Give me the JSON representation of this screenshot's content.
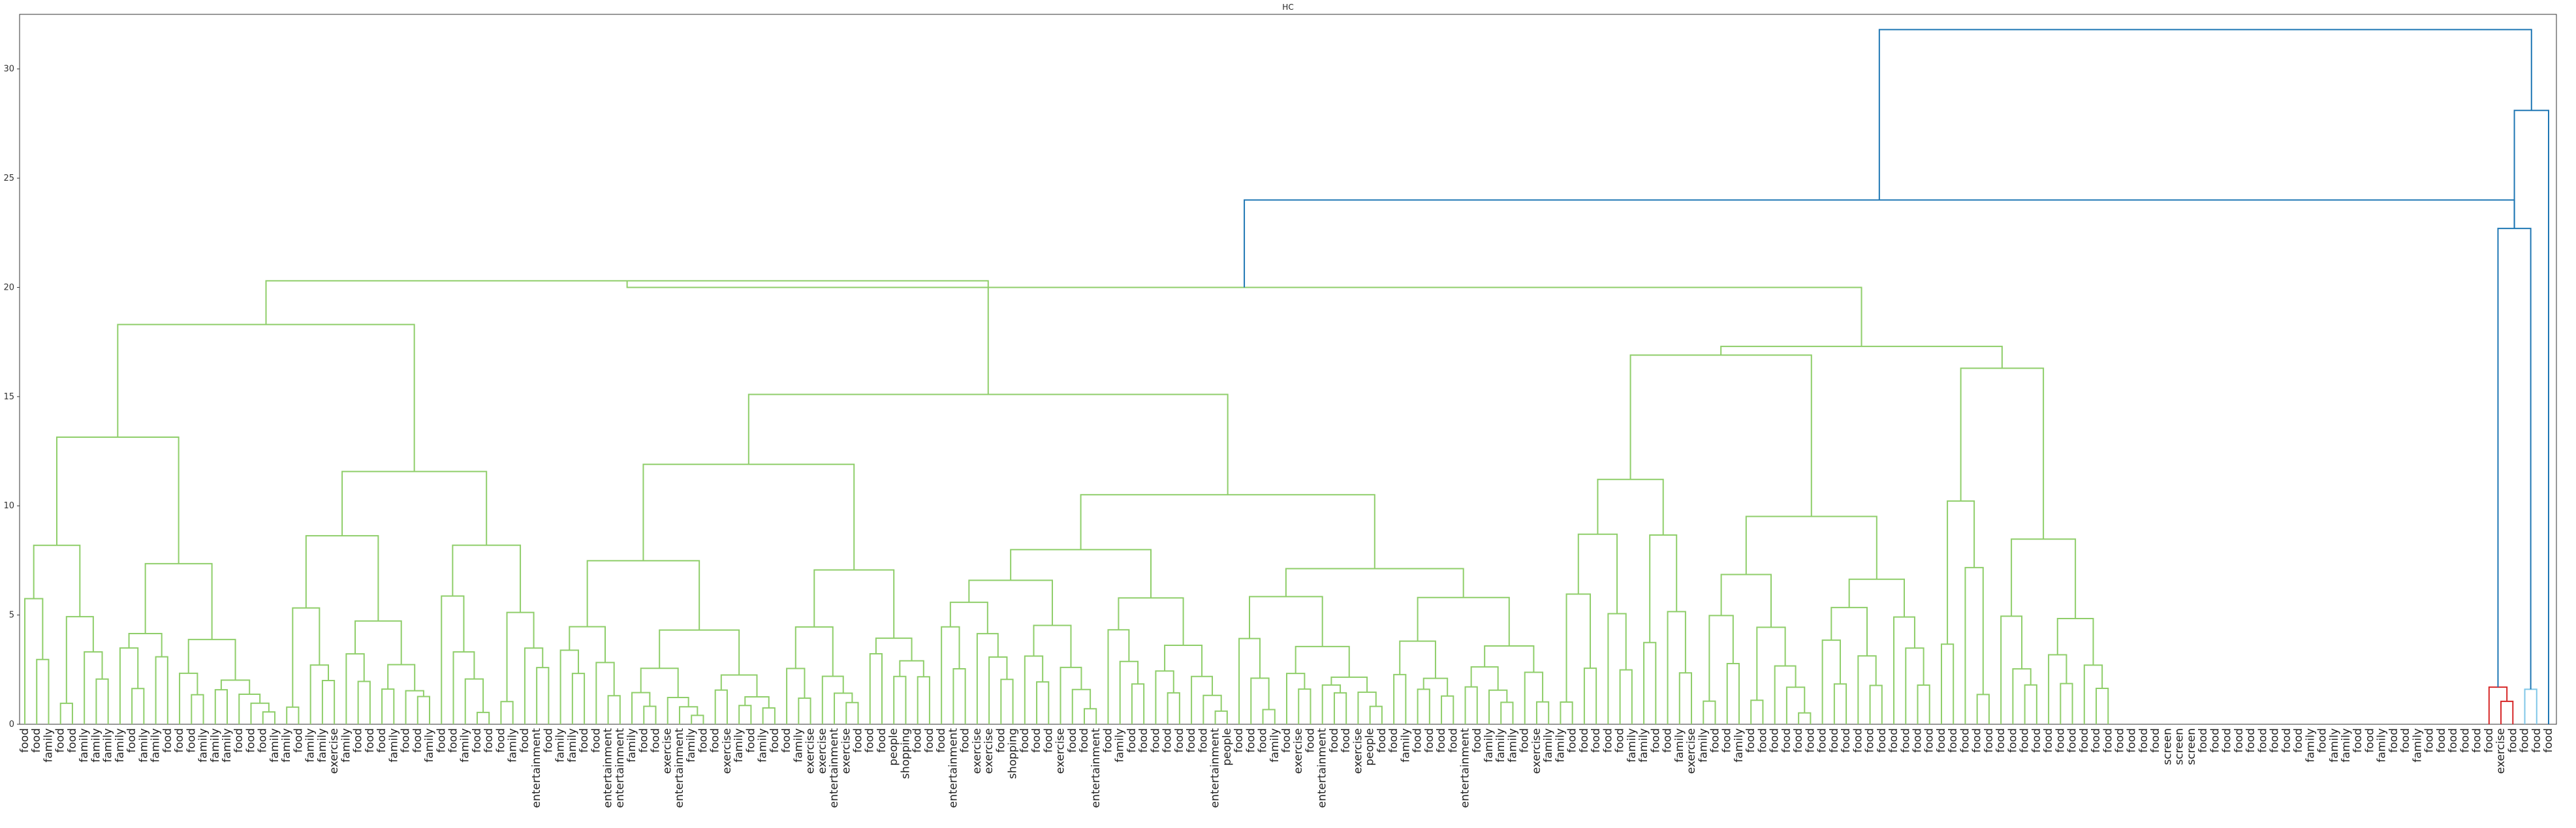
{
  "chart_data": {
    "type": "dendrogram",
    "title": "HC",
    "xlabel": "",
    "ylabel": "",
    "ylim": [
      0,
      32.5
    ],
    "yticks": [
      0,
      5,
      10,
      15,
      20,
      25,
      30
    ],
    "grid": false,
    "legend": "none",
    "colors": {
      "cluster_green": "#8fce6a",
      "cluster_red": "#d62728",
      "cluster_lightblue": "#7fc7e8",
      "above_threshold": "#1f77b4"
    },
    "leaf_label_sequence": [
      "food",
      "food",
      "family",
      "food",
      "food",
      "family",
      "family",
      "family",
      "family",
      "food",
      "family",
      "family",
      "food",
      "food",
      "food",
      "family",
      "family",
      "family",
      "food",
      "food",
      "food",
      "family",
      "family",
      "food",
      "family",
      "family",
      "exercise",
      "family",
      "food",
      "food",
      "food",
      "family",
      "food",
      "food",
      "family",
      "food",
      "food",
      "family",
      "food",
      "food",
      "food",
      "family",
      "food",
      "entertainment",
      "food",
      "family",
      "family",
      "food",
      "food",
      "entertainment",
      "entertainment",
      "family",
      "food",
      "food",
      "exercise",
      "entertainment",
      "family",
      "food",
      "food",
      "exercise",
      "family",
      "food",
      "family",
      "food",
      "food",
      "family",
      "exercise",
      "exercise",
      "entertainment",
      "exercise",
      "food",
      "food",
      "food",
      "people",
      "shopping",
      "food",
      "food",
      "food",
      "entertainment",
      "food",
      "exercise",
      "exercise",
      "food",
      "shopping",
      "food",
      "food",
      "food",
      "exercise",
      "food",
      "food",
      "entertainment",
      "food",
      "family",
      "food",
      "food",
      "food",
      "food",
      "food",
      "food",
      "food",
      "entertainment",
      "people",
      "food",
      "food",
      "food",
      "family",
      "food",
      "exercise",
      "food",
      "entertainment",
      "food",
      "food",
      "exercise",
      "people",
      "food",
      "food",
      "family",
      "food",
      "food",
      "food",
      "food",
      "entertainment",
      "food",
      "family",
      "family",
      "family",
      "food",
      "exercise",
      "family",
      "family",
      "food",
      "food",
      "food",
      "food",
      "food",
      "family",
      "family",
      "food",
      "food",
      "family",
      "exercise",
      "family",
      "food",
      "food",
      "family",
      "food",
      "food",
      "food",
      "food",
      "food",
      "food",
      "food",
      "food",
      "food",
      "food",
      "food",
      "food",
      "food",
      "food",
      "food",
      "food",
      "food",
      "food",
      "food",
      "food",
      "food",
      "food",
      "food",
      "food",
      "food",
      "food",
      "food",
      "food",
      "food",
      "food",
      "food",
      "food",
      "food",
      "food",
      "food",
      "screen",
      "screen",
      "screen",
      "food",
      "food",
      "food",
      "food",
      "food",
      "food",
      "food",
      "food",
      "food",
      "family",
      "food",
      "family",
      "family",
      "food",
      "food",
      "family",
      "food",
      "food",
      "family",
      "food",
      "food",
      "food",
      "food",
      "food",
      "food",
      "exercise",
      "food",
      "food",
      "food",
      "food"
    ],
    "links": [
      {
        "height": 31.8,
        "color": "above_threshold"
      },
      {
        "height": 28.1,
        "color": "above_threshold"
      },
      {
        "height": 24.0,
        "color": "above_threshold"
      },
      {
        "height": 22.7,
        "color": "above_threshold"
      },
      {
        "height": 21.1,
        "color": "above_threshold"
      },
      {
        "height": 21.0,
        "color": "cluster_red"
      },
      {
        "height": 20.3,
        "color": "cluster_green"
      },
      {
        "height": 20.0,
        "color": "cluster_green"
      },
      {
        "height": 19.5,
        "color": "cluster_green"
      },
      {
        "height": 18.3,
        "color": "cluster_green"
      },
      {
        "height": 17.3,
        "color": "cluster_green"
      },
      {
        "height": 16.9,
        "color": "cluster_green"
      },
      {
        "height": 16.3,
        "color": "cluster_green"
      },
      {
        "height": 15.1,
        "color": "cluster_green"
      },
      {
        "height": 14.7,
        "color": "cluster_green"
      },
      {
        "height": 13.8,
        "color": "cluster_green"
      },
      {
        "height": 13.3,
        "color": "cluster_green"
      },
      {
        "height": 12.2,
        "color": "cluster_green"
      },
      {
        "height": 11.0,
        "color": "cluster_green"
      },
      {
        "height": 10.5,
        "color": "cluster_green"
      },
      {
        "height": 7.6,
        "color": "cluster_green"
      },
      {
        "height": 4.4,
        "color": "cluster_green"
      },
      {
        "height": 1.7,
        "color": "cluster_red"
      },
      {
        "height": 1.6,
        "color": "cluster_lightblue"
      }
    ]
  }
}
